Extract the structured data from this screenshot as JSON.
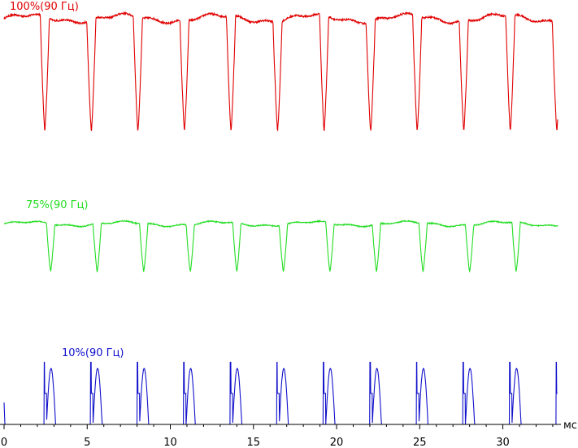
{
  "chart_data": {
    "type": "line",
    "x_unit": "мс",
    "xlim": [
      0,
      33.5
    ],
    "x_ticks": [
      0,
      5,
      10,
      15,
      20,
      25,
      30
    ],
    "x_tick_labels": [
      "0",
      "5",
      "10",
      "15",
      "20",
      "25",
      "30"
    ],
    "grid": false,
    "series": [
      {
        "name": "100%(90 Гц)",
        "color": "#e00000",
        "period_ms": 2.8,
        "first_dip_ms": 2.45,
        "dip_width_ms": 0.55,
        "high_level": 0.93,
        "dip_min": 0.16,
        "x": [
          0,
          0.8,
          1.8,
          2.2,
          2.45,
          2.7,
          3.0,
          5.1,
          5.3,
          5.6,
          7.9,
          8.2,
          10.6,
          10.9,
          13.4,
          13.6,
          16.2,
          16.5,
          19.0,
          19.2,
          21.8,
          22.1,
          24.6,
          24.8,
          27.4,
          27.7,
          30.2,
          30.5,
          33.0,
          33.3
        ],
        "y": [
          0.93,
          0.93,
          0.93,
          0.92,
          0.16,
          0.92,
          0.92,
          0.97,
          0.18,
          0.97,
          0.92,
          0.17,
          0.92,
          0.17,
          0.93,
          0.17,
          0.97,
          0.16,
          0.93,
          0.17,
          0.93,
          0.17,
          0.93,
          0.17,
          0.97,
          0.17,
          0.93,
          0.17,
          0.93,
          0.93
        ]
      },
      {
        "name": "75%(90 Гц)",
        "color": "#22dd22",
        "period_ms": 2.8,
        "first_dip_ms": 2.8,
        "dip_width_ms": 0.5,
        "high_level": 0.9,
        "dip_min": 0.33,
        "x": [
          0,
          0.3,
          0.5,
          2.5,
          2.8,
          3.1,
          5.6,
          8.4,
          11.2,
          14.0,
          16.8,
          19.6,
          22.4,
          25.2,
          28.0,
          30.8,
          33.3
        ],
        "y": [
          0.05,
          0.9,
          0.9,
          0.9,
          0.33,
          0.9,
          0.33,
          0.33,
          0.15,
          0.33,
          0.33,
          0.33,
          0.15,
          0.33,
          0.33,
          0.33,
          0.05
        ]
      },
      {
        "name": "10%(90 Гц)",
        "color": "#1010cc",
        "period_ms": 2.8,
        "first_pulse_ms": 2.4,
        "pulse_width_ms": 0.55,
        "baseline": 0.0,
        "pulse_peak": 0.85,
        "x": [
          0,
          2.4,
          5.2,
          8.0,
          10.8,
          13.6,
          16.4,
          19.2,
          22.0,
          24.8,
          27.6,
          30.4,
          33.2
        ],
        "y": [
          0.3,
          0.85,
          0.8,
          0.85,
          0.85,
          0.85,
          0.75,
          0.85,
          0.85,
          0.8,
          0.75,
          0.85,
          0.85
        ]
      }
    ]
  }
}
